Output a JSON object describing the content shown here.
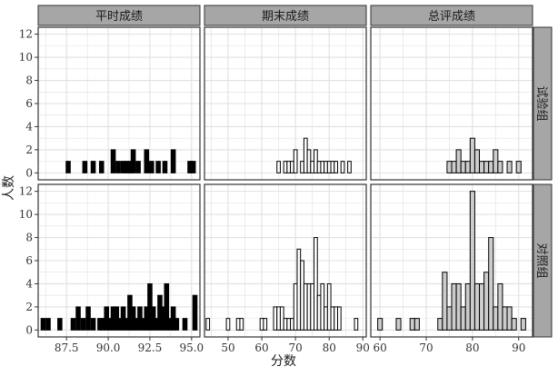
{
  "chart_data": {
    "type": "bar",
    "subtype": "faceted-histogram",
    "ylabel": "人数",
    "xlabel": "分数",
    "grid": true,
    "columns": [
      "平时成绩",
      "期末成绩",
      "总评成绩"
    ],
    "rows": [
      "试验组",
      "对照组"
    ],
    "fills": {
      "平时成绩": "#000000",
      "期末成绩": "#ffffff",
      "总评成绩": "#cccccc"
    },
    "strip_color": "#a6a6a6",
    "grid_color": "#e0e0e0",
    "y_ticks": [
      0,
      2,
      4,
      6,
      8,
      10,
      12
    ],
    "ylim": [
      -0.6,
      12.6
    ],
    "panels": [
      {
        "column": "平时成绩",
        "row": "试验组",
        "binwidth": 0.25,
        "xlim": [
          85.8,
          95.5
        ],
        "x_ticks": [
          87.5,
          90.0,
          92.5,
          95.0
        ],
        "bins": [
          {
            "x": 87.6,
            "count": 1
          },
          {
            "x": 88.6,
            "count": 1
          },
          {
            "x": 89.1,
            "count": 1
          },
          {
            "x": 89.6,
            "count": 1
          },
          {
            "x": 90.3,
            "count": 2
          },
          {
            "x": 90.6,
            "count": 1
          },
          {
            "x": 90.9,
            "count": 1
          },
          {
            "x": 91.1,
            "count": 1
          },
          {
            "x": 91.3,
            "count": 1
          },
          {
            "x": 91.5,
            "count": 2
          },
          {
            "x": 91.8,
            "count": 1
          },
          {
            "x": 92.3,
            "count": 2
          },
          {
            "x": 92.6,
            "count": 1
          },
          {
            "x": 93.0,
            "count": 1
          },
          {
            "x": 93.4,
            "count": 1
          },
          {
            "x": 93.9,
            "count": 2
          },
          {
            "x": 94.9,
            "count": 1
          },
          {
            "x": 95.1,
            "count": 1
          }
        ]
      },
      {
        "column": "期末成绩",
        "row": "试验组",
        "binwidth": 1,
        "xlim": [
          43,
          91
        ],
        "x_ticks": [
          50,
          60,
          70,
          80,
          90
        ],
        "bins": [
          {
            "x": 65,
            "count": 1
          },
          {
            "x": 67,
            "count": 1
          },
          {
            "x": 68,
            "count": 1
          },
          {
            "x": 69,
            "count": 1
          },
          {
            "x": 70,
            "count": 2
          },
          {
            "x": 72,
            "count": 1
          },
          {
            "x": 73,
            "count": 3
          },
          {
            "x": 74,
            "count": 2
          },
          {
            "x": 75,
            "count": 1
          },
          {
            "x": 76,
            "count": 2
          },
          {
            "x": 77,
            "count": 1
          },
          {
            "x": 78,
            "count": 1
          },
          {
            "x": 79,
            "count": 1
          },
          {
            "x": 80,
            "count": 1
          },
          {
            "x": 81,
            "count": 1
          },
          {
            "x": 82,
            "count": 1
          },
          {
            "x": 84,
            "count": 1
          },
          {
            "x": 86,
            "count": 1
          }
        ]
      },
      {
        "column": "总评成绩",
        "row": "试验组",
        "binwidth": 1,
        "xlim": [
          58,
          93
        ],
        "x_ticks": [
          60,
          70,
          80,
          90
        ],
        "bins": [
          {
            "x": 75,
            "count": 1
          },
          {
            "x": 76,
            "count": 1
          },
          {
            "x": 77,
            "count": 2
          },
          {
            "x": 78,
            "count": 1
          },
          {
            "x": 79,
            "count": 1
          },
          {
            "x": 80,
            "count": 3
          },
          {
            "x": 81,
            "count": 2
          },
          {
            "x": 82,
            "count": 1
          },
          {
            "x": 83,
            "count": 1
          },
          {
            "x": 84,
            "count": 1
          },
          {
            "x": 85,
            "count": 2
          },
          {
            "x": 86,
            "count": 1
          },
          {
            "x": 88,
            "count": 1
          },
          {
            "x": 90,
            "count": 1
          }
        ]
      },
      {
        "column": "平时成绩",
        "row": "对照组",
        "binwidth": 0.25,
        "xlim": [
          85.8,
          95.5
        ],
        "x_ticks": [
          87.5,
          90.0,
          92.5,
          95.0
        ],
        "bins": [
          {
            "x": 86.1,
            "count": 1
          },
          {
            "x": 86.4,
            "count": 1
          },
          {
            "x": 87.1,
            "count": 1
          },
          {
            "x": 87.9,
            "count": 1
          },
          {
            "x": 88.2,
            "count": 2
          },
          {
            "x": 88.5,
            "count": 1
          },
          {
            "x": 88.8,
            "count": 2
          },
          {
            "x": 89.1,
            "count": 1
          },
          {
            "x": 89.5,
            "count": 1
          },
          {
            "x": 89.7,
            "count": 1
          },
          {
            "x": 89.9,
            "count": 2
          },
          {
            "x": 90.1,
            "count": 1
          },
          {
            "x": 90.3,
            "count": 2
          },
          {
            "x": 90.5,
            "count": 2
          },
          {
            "x": 90.7,
            "count": 1
          },
          {
            "x": 90.9,
            "count": 2
          },
          {
            "x": 91.1,
            "count": 1
          },
          {
            "x": 91.3,
            "count": 3
          },
          {
            "x": 91.5,
            "count": 2
          },
          {
            "x": 91.7,
            "count": 1
          },
          {
            "x": 91.9,
            "count": 2
          },
          {
            "x": 92.1,
            "count": 1
          },
          {
            "x": 92.3,
            "count": 2
          },
          {
            "x": 92.5,
            "count": 4
          },
          {
            "x": 92.7,
            "count": 2
          },
          {
            "x": 92.9,
            "count": 1
          },
          {
            "x": 93.1,
            "count": 3
          },
          {
            "x": 93.3,
            "count": 2
          },
          {
            "x": 93.5,
            "count": 4
          },
          {
            "x": 93.7,
            "count": 1
          },
          {
            "x": 93.9,
            "count": 2
          },
          {
            "x": 94.1,
            "count": 1
          },
          {
            "x": 94.6,
            "count": 1
          },
          {
            "x": 95.2,
            "count": 3
          }
        ]
      },
      {
        "column": "期末成绩",
        "row": "对照组",
        "binwidth": 1,
        "xlim": [
          43,
          91
        ],
        "x_ticks": [
          50,
          60,
          70,
          80,
          90
        ],
        "bins": [
          {
            "x": 44,
            "count": 1
          },
          {
            "x": 50,
            "count": 1
          },
          {
            "x": 53,
            "count": 1
          },
          {
            "x": 54,
            "count": 1
          },
          {
            "x": 60,
            "count": 1
          },
          {
            "x": 61,
            "count": 1
          },
          {
            "x": 64,
            "count": 2
          },
          {
            "x": 65,
            "count": 2
          },
          {
            "x": 66,
            "count": 2
          },
          {
            "x": 67,
            "count": 1
          },
          {
            "x": 68,
            "count": 1
          },
          {
            "x": 69,
            "count": 1
          },
          {
            "x": 70,
            "count": 4
          },
          {
            "x": 71,
            "count": 7
          },
          {
            "x": 72,
            "count": 6
          },
          {
            "x": 73,
            "count": 4
          },
          {
            "x": 74,
            "count": 4
          },
          {
            "x": 75,
            "count": 4
          },
          {
            "x": 76,
            "count": 8
          },
          {
            "x": 77,
            "count": 3
          },
          {
            "x": 78,
            "count": 4
          },
          {
            "x": 79,
            "count": 2
          },
          {
            "x": 80,
            "count": 4
          },
          {
            "x": 81,
            "count": 2
          },
          {
            "x": 82,
            "count": 2
          },
          {
            "x": 83,
            "count": 2
          },
          {
            "x": 88,
            "count": 1
          }
        ]
      },
      {
        "column": "总评成绩",
        "row": "对照组",
        "binwidth": 1,
        "xlim": [
          58,
          93
        ],
        "x_ticks": [
          60,
          70,
          80,
          90
        ],
        "bins": [
          {
            "x": 60,
            "count": 1
          },
          {
            "x": 64,
            "count": 1
          },
          {
            "x": 67,
            "count": 1
          },
          {
            "x": 68,
            "count": 1
          },
          {
            "x": 73,
            "count": 1
          },
          {
            "x": 74,
            "count": 5
          },
          {
            "x": 75,
            "count": 2
          },
          {
            "x": 76,
            "count": 4
          },
          {
            "x": 77,
            "count": 4
          },
          {
            "x": 78,
            "count": 2
          },
          {
            "x": 79,
            "count": 4
          },
          {
            "x": 80,
            "count": 12
          },
          {
            "x": 81,
            "count": 4
          },
          {
            "x": 82,
            "count": 4
          },
          {
            "x": 83,
            "count": 5
          },
          {
            "x": 84,
            "count": 8
          },
          {
            "x": 85,
            "count": 2
          },
          {
            "x": 86,
            "count": 4
          },
          {
            "x": 87,
            "count": 2
          },
          {
            "x": 88,
            "count": 2
          },
          {
            "x": 89,
            "count": 1
          },
          {
            "x": 91,
            "count": 1
          }
        ]
      }
    ]
  }
}
